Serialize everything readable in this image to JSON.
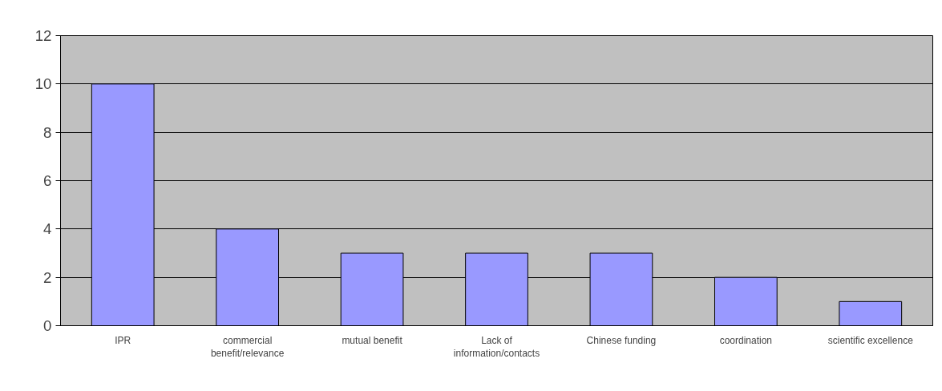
{
  "chart_data": {
    "type": "bar",
    "categories": [
      "IPR",
      "commercial\nbenefit/relevance",
      "mutual benefit",
      "Lack of\ninformation/contacts",
      "Chinese funding",
      "coordination",
      "scientific excellence"
    ],
    "values": [
      10,
      4,
      3,
      3,
      3,
      2,
      1
    ],
    "color": "#9999ff",
    "ylim": [
      0,
      12
    ],
    "yticks": [
      0,
      2,
      4,
      6,
      8,
      10,
      12
    ],
    "grid": "y"
  }
}
